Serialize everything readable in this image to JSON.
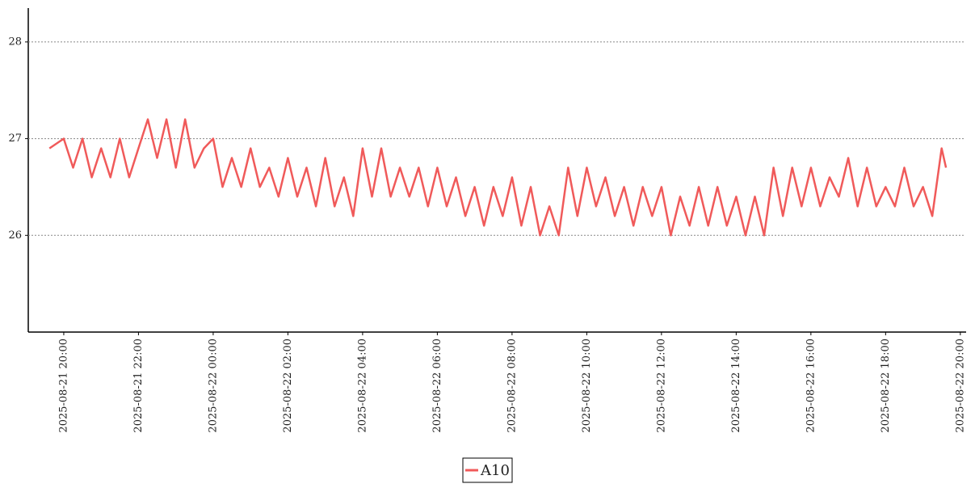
{
  "chart_data": {
    "type": "line",
    "x": [
      "2025-08-21 19:37",
      "2025-08-21 20:00",
      "2025-08-21 20:15",
      "2025-08-21 20:30",
      "2025-08-21 20:45",
      "2025-08-21 21:00",
      "2025-08-21 21:15",
      "2025-08-21 21:30",
      "2025-08-21 21:45",
      "2025-08-21 22:00",
      "2025-08-21 22:15",
      "2025-08-21 22:30",
      "2025-08-21 22:45",
      "2025-08-21 23:00",
      "2025-08-21 23:15",
      "2025-08-21 23:30",
      "2025-08-21 23:45",
      "2025-08-22 00:00",
      "2025-08-22 00:15",
      "2025-08-22 00:30",
      "2025-08-22 00:45",
      "2025-08-22 01:00",
      "2025-08-22 01:15",
      "2025-08-22 01:30",
      "2025-08-22 01:45",
      "2025-08-22 02:00",
      "2025-08-22 02:15",
      "2025-08-22 02:30",
      "2025-08-22 02:45",
      "2025-08-22 03:00",
      "2025-08-22 03:15",
      "2025-08-22 03:30",
      "2025-08-22 03:45",
      "2025-08-22 04:00",
      "2025-08-22 04:15",
      "2025-08-22 04:30",
      "2025-08-22 04:45",
      "2025-08-22 05:00",
      "2025-08-22 05:15",
      "2025-08-22 05:30",
      "2025-08-22 05:45",
      "2025-08-22 06:00",
      "2025-08-22 06:15",
      "2025-08-22 06:30",
      "2025-08-22 06:45",
      "2025-08-22 07:00",
      "2025-08-22 07:15",
      "2025-08-22 07:30",
      "2025-08-22 07:45",
      "2025-08-22 08:00",
      "2025-08-22 08:15",
      "2025-08-22 08:30",
      "2025-08-22 08:45",
      "2025-08-22 09:00",
      "2025-08-22 09:15",
      "2025-08-22 09:30",
      "2025-08-22 09:45",
      "2025-08-22 10:00",
      "2025-08-22 10:15",
      "2025-08-22 10:30",
      "2025-08-22 10:45",
      "2025-08-22 11:00",
      "2025-08-22 11:15",
      "2025-08-22 11:30",
      "2025-08-22 11:45",
      "2025-08-22 12:00",
      "2025-08-22 12:15",
      "2025-08-22 12:30",
      "2025-08-22 12:45",
      "2025-08-22 13:00",
      "2025-08-22 13:15",
      "2025-08-22 13:30",
      "2025-08-22 13:45",
      "2025-08-22 14:00",
      "2025-08-22 14:15",
      "2025-08-22 14:30",
      "2025-08-22 14:45",
      "2025-08-22 15:00",
      "2025-08-22 15:15",
      "2025-08-22 15:30",
      "2025-08-22 15:45",
      "2025-08-22 16:00",
      "2025-08-22 16:15",
      "2025-08-22 16:30",
      "2025-08-22 16:45",
      "2025-08-22 17:00",
      "2025-08-22 17:15",
      "2025-08-22 17:30",
      "2025-08-22 17:45",
      "2025-08-22 18:00",
      "2025-08-22 18:15",
      "2025-08-22 18:30",
      "2025-08-22 18:45",
      "2025-08-22 19:00",
      "2025-08-22 19:15",
      "2025-08-22 19:30",
      "2025-08-22 19:37"
    ],
    "series": [
      {
        "name": "A10",
        "color": "#f05a5a",
        "values": [
          26.9,
          27.0,
          26.7,
          27.0,
          26.6,
          26.9,
          26.6,
          27.0,
          26.6,
          26.9,
          27.2,
          26.8,
          27.2,
          26.7,
          27.2,
          26.7,
          26.9,
          27.0,
          26.5,
          26.8,
          26.5,
          26.9,
          26.5,
          26.7,
          26.4,
          26.8,
          26.4,
          26.7,
          26.3,
          26.8,
          26.3,
          26.6,
          26.2,
          26.9,
          26.4,
          26.9,
          26.4,
          26.7,
          26.4,
          26.7,
          26.3,
          26.7,
          26.3,
          26.6,
          26.2,
          26.5,
          26.1,
          26.5,
          26.2,
          26.6,
          26.1,
          26.5,
          26.0,
          26.3,
          26.0,
          26.7,
          26.2,
          26.7,
          26.3,
          26.6,
          26.2,
          26.5,
          26.1,
          26.5,
          26.2,
          26.5,
          26.0,
          26.4,
          26.1,
          26.5,
          26.1,
          26.5,
          26.1,
          26.4,
          26.0,
          26.4,
          26.0,
          26.7,
          26.2,
          26.7,
          26.3,
          26.7,
          26.3,
          26.6,
          26.4,
          26.8,
          26.3,
          26.7,
          26.3,
          26.5,
          26.3,
          26.7,
          26.3,
          26.5,
          26.2,
          26.9,
          26.7
        ]
      }
    ],
    "xlim": [
      "2025-08-21 19:03",
      "2025-08-22 20:08"
    ],
    "xticks": [
      "2025-08-21 20:00",
      "2025-08-21 22:00",
      "2025-08-22 00:00",
      "2025-08-22 02:00",
      "2025-08-22 04:00",
      "2025-08-22 06:00",
      "2025-08-22 08:00",
      "2025-08-22 10:00",
      "2025-08-22 12:00",
      "2025-08-22 14:00",
      "2025-08-22 16:00",
      "2025-08-22 18:00",
      "2025-08-22 20:00"
    ],
    "ylim": [
      25,
      28.35
    ],
    "yticks": [
      26,
      27,
      28
    ],
    "grid": true
  }
}
